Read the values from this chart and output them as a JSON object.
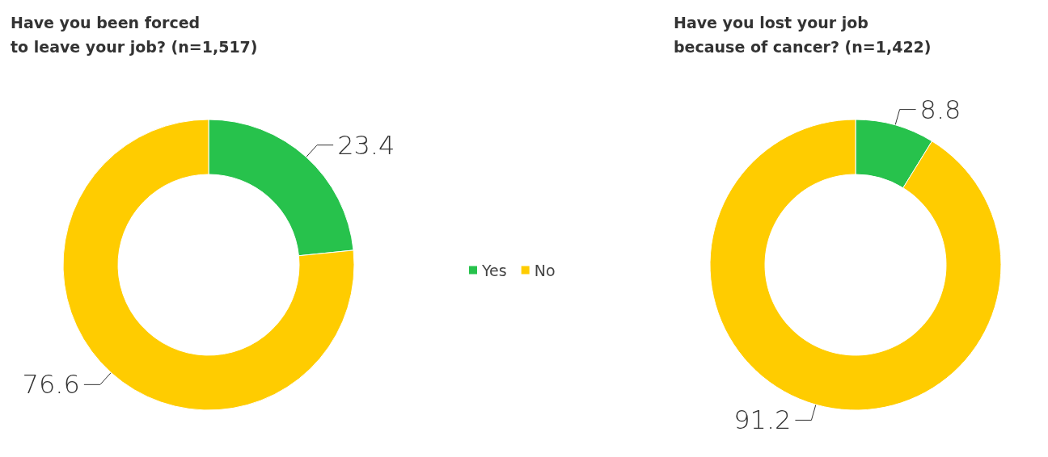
{
  "chart_data": [
    {
      "type": "donut",
      "title": "Have you been forced\nto leave your job? (n=1,517)",
      "categories": [
        "Yes",
        "No"
      ],
      "values": [
        23.4,
        76.6
      ],
      "colors": [
        "#27c24c",
        "#ffcc00"
      ],
      "data_labels": true,
      "legend": "right"
    },
    {
      "type": "donut",
      "title": "Have you lost your job\nbecause of cancer? (n=1,422)",
      "categories": [
        null,
        null
      ],
      "values": [
        8.8,
        91.2
      ],
      "colors": [
        "#27c24c",
        "#ffcc00"
      ],
      "data_labels": true
    }
  ]
}
